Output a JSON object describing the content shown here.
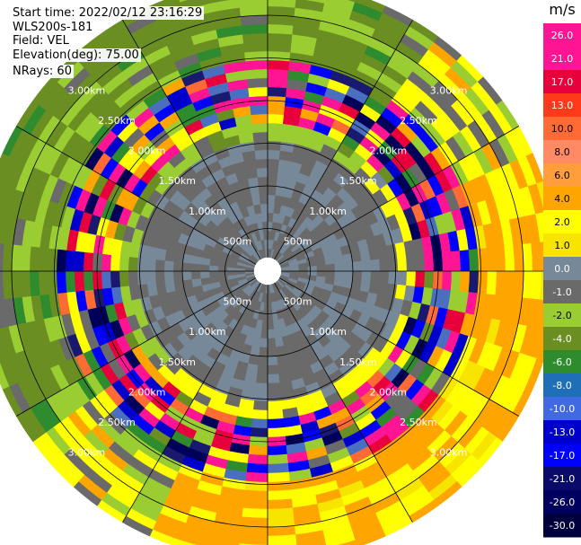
{
  "header": {
    "start_time": "Start time: 2022/02/12 23:16:29",
    "instrument": "WLS200s-181",
    "field": "Field: VEL",
    "elevation": "Elevation(deg): 75.00",
    "nrays": "NRays: 60"
  },
  "chart_data": {
    "type": "heatmap",
    "projection": "polar (PPI)",
    "field": "VEL",
    "units": "m/s",
    "n_rays": 60,
    "range_rings": [
      "500m",
      "1.00km",
      "1.50km",
      "2.00km",
      "2.50km",
      "3.00km"
    ],
    "range_ring_km": [
      0.5,
      1.0,
      1.5,
      2.0,
      2.5,
      3.0
    ],
    "max_range_km": 3.4,
    "spokes_deg": [
      0,
      30,
      60,
      90,
      120,
      150,
      180,
      210,
      240,
      270,
      300,
      330
    ],
    "colorbar": {
      "title": "m/s",
      "ticks": [
        "26.0",
        "21.0",
        "17.0",
        "13.0",
        "10.0",
        "8.0",
        "6.0",
        "4.0",
        "2.0",
        "1.0",
        "0.0",
        "-1.0",
        "-2.0",
        "-4.0",
        "-6.0",
        "-8.0",
        "-10.0",
        "-13.0",
        "-17.0",
        "-21.0",
        "-26.0",
        "-30.0"
      ],
      "colors": [
        "#ff1493",
        "#ff1493",
        "#e8003c",
        "#ff3a1a",
        "#ff6a35",
        "#ff8a64",
        "#ff9e3a",
        "#ffa500",
        "#ffff00",
        "#f7e500",
        "#778899",
        "#6a6a6a",
        "#9acd32",
        "#6b8e23",
        "#2e8b2e",
        "#1f6fb8",
        "#4169e1",
        "#0000cd",
        "#0000ff",
        "#0a0a6a",
        "#000060",
        "#00003c"
      ]
    },
    "zones": [
      {
        "r_from_km": 0.0,
        "r_to_km": 0.15,
        "description": "no data (center blank)",
        "value": null
      },
      {
        "r_from_km": 0.15,
        "r_to_km": 1.55,
        "value_range": [
          -1.0,
          1.0
        ],
        "note": "near-zero velocity (gray/slate)"
      },
      {
        "r_from_km": 1.55,
        "r_to_km": 2.45,
        "value_range": [
          -30.0,
          26.0
        ],
        "note": "noisy, full color spectrum"
      },
      {
        "r_from_km": 2.45,
        "r_to_km": 3.4,
        "value_range": [
          -4.0,
          6.0
        ],
        "note": "olive/green to the north-west, yellow/orange to the south-east"
      }
    ]
  }
}
